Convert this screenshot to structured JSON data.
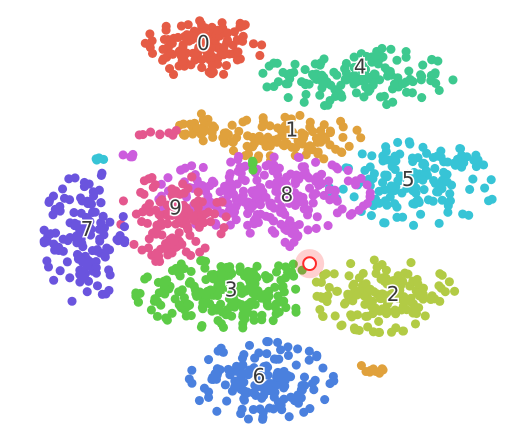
{
  "chart_data": {
    "type": "scatter",
    "title": "",
    "xlabel": "",
    "ylabel": "",
    "grid": false,
    "legend": "none",
    "marker_radius_data": 0.9,
    "xlim": [
      0,
      100
    ],
    "ylim": [
      0,
      100
    ],
    "clusters": [
      {
        "label": "0",
        "color": "#e55b45",
        "cx": 39.0,
        "cy": 90.5,
        "sx": 5.5,
        "sy": 3.6,
        "n": 130,
        "label_x": 39.0,
        "label_y": 91.5
      },
      {
        "label": "4",
        "color": "#3dc98f",
        "cx": 69.5,
        "cy": 83.5,
        "sx": 9.0,
        "sy": 3.3,
        "n": 140,
        "label_x": 70.0,
        "label_y": 86.0
      },
      {
        "label": "1",
        "color": "#e0a13c",
        "cx": 56.5,
        "cy": 69.5,
        "sx": 6.5,
        "sy": 2.6,
        "n": 95,
        "label_x": 56.5,
        "label_y": 71.5
      },
      {
        "label": "5",
        "color": "#37c4d6",
        "cx": 80.5,
        "cy": 59.0,
        "sx": 8.0,
        "sy": 4.6,
        "n": 150,
        "label_x": 79.5,
        "label_y": 60.0
      },
      {
        "label": "8",
        "color": "#cc5ddd",
        "cx": 51.0,
        "cy": 56.5,
        "sx": 10.0,
        "sy": 4.3,
        "n": 230,
        "label_x": 55.5,
        "label_y": 56.5
      },
      {
        "label": "9",
        "color": "#e4578e",
        "cx": 33.0,
        "cy": 51.5,
        "sx": 5.0,
        "sy": 4.6,
        "n": 110,
        "label_x": 33.5,
        "label_y": 53.5
      },
      {
        "label": "7",
        "color": "#6a54de",
        "cx": 15.5,
        "cy": 47.0,
        "sx": 3.8,
        "sy": 7.6,
        "n": 130,
        "label_x": 16.0,
        "label_y": 48.5
      },
      {
        "label": "3",
        "color": "#5ccb46",
        "cx": 43.5,
        "cy": 33.5,
        "sx": 8.5,
        "sy": 3.8,
        "n": 200,
        "label_x": 44.5,
        "label_y": 34.5
      },
      {
        "label": "2",
        "color": "#b2cb45",
        "cx": 74.5,
        "cy": 33.0,
        "sx": 6.8,
        "sy": 4.0,
        "n": 150,
        "label_x": 76.5,
        "label_y": 33.5
      },
      {
        "label": "6",
        "color": "#4a80de",
        "cx": 50.5,
        "cy": 13.5,
        "sx": 6.8,
        "sy": 4.3,
        "n": 160,
        "label_x": 50.0,
        "label_y": 14.5
      }
    ],
    "extra_groups": [
      {
        "color": "#e0a13c",
        "cx": 39.5,
        "cy": 72.0,
        "sx": 2.5,
        "sy": 1.5,
        "n": 30
      },
      {
        "color": "#e0a13c",
        "cx": 72.0,
        "cy": 16.0,
        "sx": 1.2,
        "sy": 0.7,
        "n": 9
      },
      {
        "color": "#e4578e",
        "cx": 29.5,
        "cy": 70.5,
        "sx": 2.5,
        "sy": 0.6,
        "n": 8
      },
      {
        "color": "#e4578e",
        "cx": 31.5,
        "cy": 43.0,
        "sx": 1.8,
        "sy": 1.5,
        "n": 15
      },
      {
        "color": "#cc5ddd",
        "cx": 57.0,
        "cy": 46.5,
        "sx": 1.2,
        "sy": 2.5,
        "n": 12
      },
      {
        "color": "#cc5ddd",
        "cx": 24.0,
        "cy": 65.0,
        "sx": 1.0,
        "sy": 0.4,
        "n": 4
      },
      {
        "color": "#37c4d6",
        "cx": 18.5,
        "cy": 64.5,
        "sx": 0.4,
        "sy": 1.0,
        "n": 4
      },
      {
        "color": "#5ccb46",
        "cx": 48.5,
        "cy": 63.5,
        "sx": 0.4,
        "sy": 1.0,
        "n": 4
      },
      {
        "color": "#5ccb46",
        "cx": 57.5,
        "cy": 39.0,
        "sx": 1.5,
        "sy": 1.0,
        "n": 6
      }
    ],
    "highlight_point": {
      "x": 60.0,
      "y": 40.5,
      "color": "#ff2a2a"
    }
  }
}
